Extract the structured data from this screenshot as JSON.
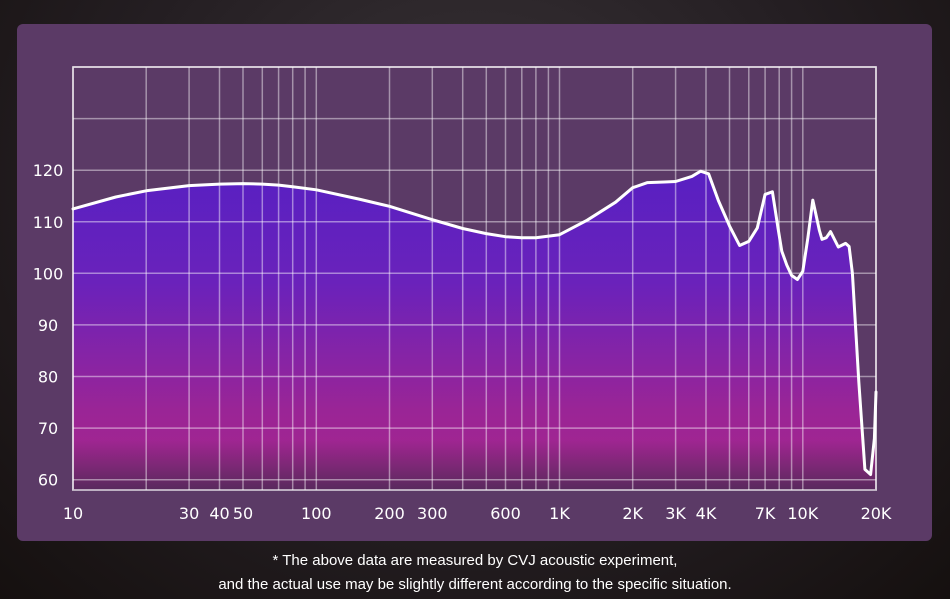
{
  "chart_data": {
    "type": "area",
    "title": "",
    "xlabel": "",
    "ylabel": "",
    "x_scale": "log",
    "xlim": [
      10,
      20000
    ],
    "ylim": [
      58,
      140
    ],
    "grid": true,
    "colors": {
      "line": "#ffffff",
      "fill_top": "#5a1fc0",
      "fill_bottom": "#a8268c",
      "panel": "#5b3a66"
    },
    "x_ticks": [
      {
        "value": 10,
        "label": "10"
      },
      {
        "value": 30,
        "label": "30"
      },
      {
        "value": 40,
        "label": "40"
      },
      {
        "value": 50,
        "label": "50"
      },
      {
        "value": 100,
        "label": "100"
      },
      {
        "value": 200,
        "label": "200"
      },
      {
        "value": 300,
        "label": "300"
      },
      {
        "value": 600,
        "label": "600"
      },
      {
        "value": 1000,
        "label": "1K"
      },
      {
        "value": 2000,
        "label": "2K"
      },
      {
        "value": 3000,
        "label": "3K"
      },
      {
        "value": 4000,
        "label": "4K"
      },
      {
        "value": 7000,
        "label": "7K"
      },
      {
        "value": 10000,
        "label": "10K"
      },
      {
        "value": 20000,
        "label": "20K"
      }
    ],
    "x_grid": [
      10,
      20,
      30,
      40,
      50,
      60,
      70,
      80,
      90,
      100,
      200,
      300,
      400,
      500,
      600,
      700,
      800,
      900,
      1000,
      2000,
      3000,
      4000,
      5000,
      6000,
      7000,
      8000,
      9000,
      10000,
      20000
    ],
    "y_ticks": [
      60,
      70,
      80,
      90,
      100,
      110,
      120
    ],
    "y_grid": [
      60,
      70,
      80,
      90,
      100,
      110,
      120,
      130,
      140
    ],
    "series": [
      {
        "x": [
          10,
          15,
          20,
          30,
          40,
          50,
          60,
          70,
          80,
          100,
          150,
          200,
          300,
          400,
          500,
          600,
          700,
          800,
          1000,
          1300,
          1700,
          2000,
          2300,
          2700,
          3000,
          3500,
          3800,
          4100,
          4500,
          5000,
          5500,
          6000,
          6500,
          7000,
          7500,
          7900,
          8200,
          8600,
          9000,
          9500,
          10000,
          10500,
          11000,
          11700,
          12000,
          12500,
          13000,
          14000,
          15000,
          15500,
          16000,
          17000,
          18000,
          19000,
          19700,
          20000
        ],
        "y": [
          112.5,
          114.8,
          116,
          117,
          117.3,
          117.4,
          117.3,
          117.1,
          116.8,
          116.2,
          114.4,
          113,
          110.4,
          108.7,
          107.7,
          107.1,
          106.9,
          106.9,
          107.5,
          110.3,
          113.8,
          116.6,
          117.6,
          117.7,
          117.8,
          118.8,
          119.8,
          119.3,
          114.1,
          109.2,
          105.4,
          106.2,
          108.8,
          115.3,
          115.8,
          108.9,
          104.3,
          101.6,
          99.6,
          98.8,
          100.4,
          106.9,
          114.2,
          108.3,
          106.6,
          106.9,
          108.1,
          105.1,
          105.8,
          105.2,
          100,
          79,
          62,
          61,
          68,
          77
        ]
      }
    ],
    "footnote": [
      "* The above data are measured by CVJ acoustic experiment,",
      "and the actual use may be slightly different according to the specific situation."
    ]
  }
}
